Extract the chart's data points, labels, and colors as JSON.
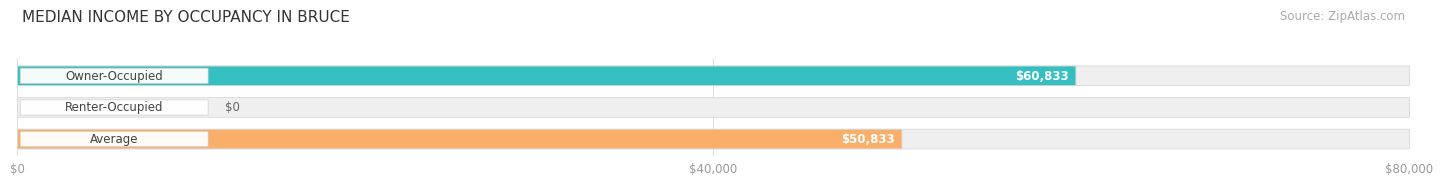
{
  "title": "MEDIAN INCOME BY OCCUPANCY IN BRUCE",
  "source": "Source: ZipAtlas.com",
  "categories": [
    "Owner-Occupied",
    "Renter-Occupied",
    "Average"
  ],
  "values": [
    60833,
    0,
    50833
  ],
  "bar_colors": [
    "#35bfc0",
    "#c8a8d8",
    "#f9ae6a"
  ],
  "bar_labels": [
    "$60,833",
    "$0",
    "$50,833"
  ],
  "xlim": [
    0,
    80000
  ],
  "xticks": [
    0,
    40000,
    80000
  ],
  "xtick_labels": [
    "$0",
    "$40,000",
    "$80,000"
  ],
  "background_color": "#ffffff",
  "bar_bg_color": "#efefef",
  "bar_bg_edge_color": "#d8d8d8",
  "title_fontsize": 11,
  "source_fontsize": 8.5,
  "label_fontsize": 8.5,
  "tick_fontsize": 8.5,
  "bar_height": 0.62
}
